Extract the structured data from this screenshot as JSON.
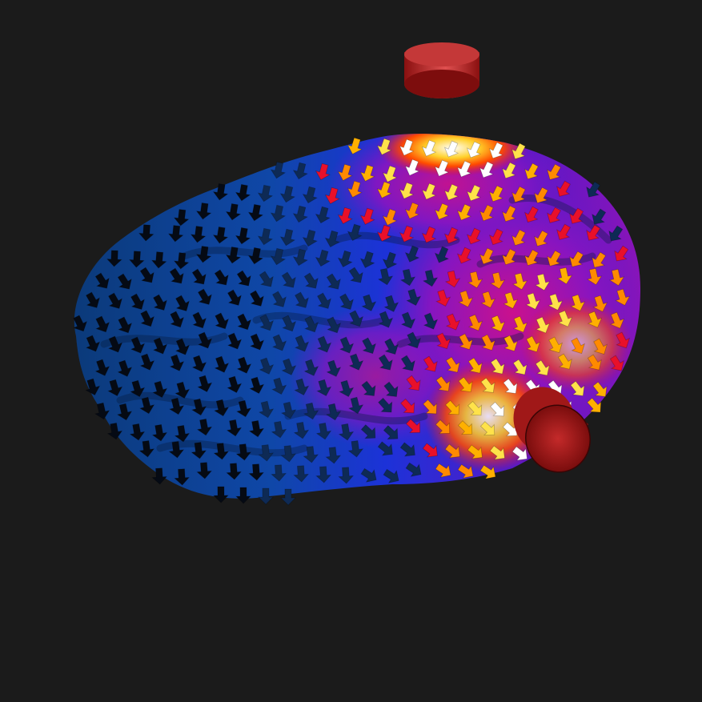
{
  "scene": {
    "subject": "brain-surface-field",
    "background_color": "#1b1b1b",
    "brain_colors": {
      "deep_blue": "#0b3f8f",
      "blue": "#1c3bd8",
      "violet": "#6a18c8",
      "magenta": "#b0108e",
      "red": "#e3102a",
      "orange": "#ff8a00",
      "yellow": "#ffd12a",
      "white": "#ffffff"
    },
    "electrodes": [
      {
        "name": "top-electrode",
        "color": "#b0141c"
      },
      {
        "name": "side-electrode",
        "color": "#9e1515"
      }
    ],
    "field_palette": [
      "#050a14",
      "#0e2a55",
      "#e8102a",
      "#ff8a00",
      "#ffb000",
      "#ffe24a",
      "#ffffff"
    ]
  }
}
